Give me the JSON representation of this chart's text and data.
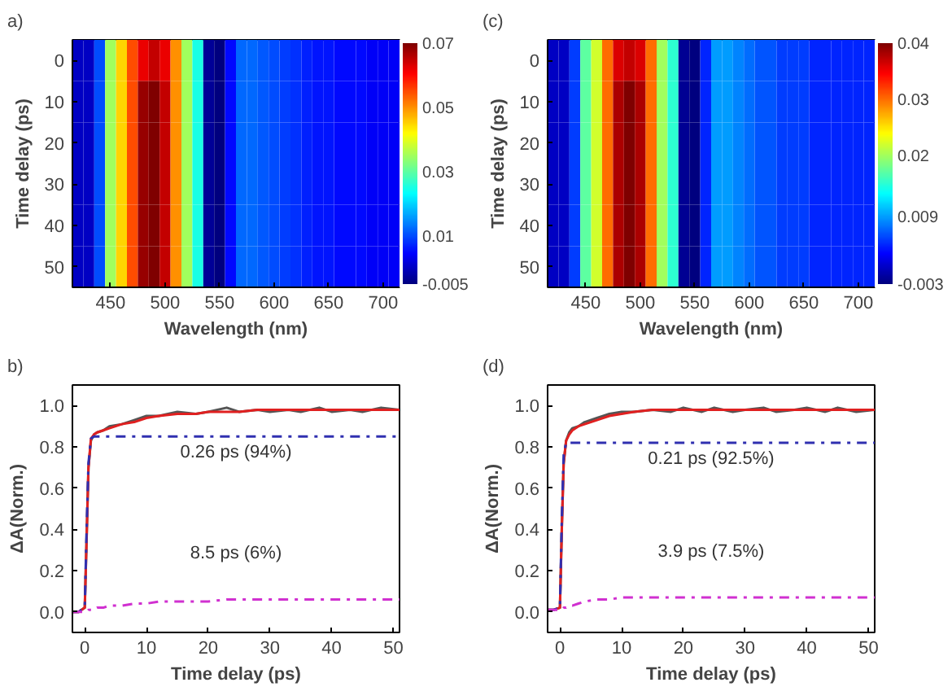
{
  "chart_data": [
    {
      "type": "heatmap",
      "title": "a)",
      "xlabel": "Wavelength (nm)",
      "ylabel": "Time delay (ps)",
      "categories": [
        null,
        null,
        null,
        "450",
        null,
        null,
        null,
        null,
        "500",
        null,
        null,
        null,
        null,
        "550",
        null,
        null,
        null,
        null,
        "600",
        null,
        null,
        null,
        null,
        "650",
        null,
        null,
        null,
        null,
        "700",
        null
      ],
      "y_categories": [
        "0",
        "10",
        "20",
        "30",
        "40",
        "50"
      ],
      "clim": [
        -0.005,
        0.07
      ],
      "cticks": [
        -0.005,
        0.01,
        0.03,
        0.05,
        0.07
      ],
      "cells": [
        [
          0.0,
          0.0,
          0.01,
          0.035,
          0.045,
          0.055,
          0.062,
          0.065,
          0.062,
          0.05,
          0.035,
          0.025,
          -0.003,
          -0.005,
          0.005,
          0.012,
          0.012,
          0.011,
          0.01,
          0.009,
          0.008,
          0.007,
          0.006,
          0.006,
          0.005,
          0.005,
          0.005,
          0.004,
          0.004,
          0.004
        ],
        [
          0.0,
          0.0,
          0.01,
          0.035,
          0.045,
          0.055,
          0.068,
          0.07,
          0.065,
          0.05,
          0.035,
          0.025,
          -0.003,
          -0.005,
          0.005,
          0.012,
          0.012,
          0.011,
          0.01,
          0.009,
          0.008,
          0.007,
          0.006,
          0.006,
          0.005,
          0.005,
          0.005,
          0.004,
          0.004,
          0.004
        ],
        [
          0.0,
          0.0,
          0.01,
          0.035,
          0.045,
          0.055,
          0.068,
          0.07,
          0.065,
          0.05,
          0.035,
          0.025,
          -0.003,
          -0.005,
          0.005,
          0.012,
          0.012,
          0.011,
          0.01,
          0.009,
          0.008,
          0.007,
          0.006,
          0.006,
          0.005,
          0.005,
          0.005,
          0.004,
          0.004,
          0.004
        ],
        [
          0.0,
          0.0,
          0.01,
          0.035,
          0.045,
          0.055,
          0.068,
          0.07,
          0.065,
          0.05,
          0.035,
          0.025,
          -0.003,
          -0.005,
          0.005,
          0.012,
          0.012,
          0.011,
          0.01,
          0.009,
          0.008,
          0.007,
          0.006,
          0.006,
          0.005,
          0.005,
          0.005,
          0.004,
          0.004,
          0.004
        ],
        [
          0.0,
          0.0,
          0.01,
          0.035,
          0.045,
          0.055,
          0.068,
          0.07,
          0.065,
          0.05,
          0.035,
          0.025,
          -0.003,
          -0.005,
          0.005,
          0.012,
          0.012,
          0.011,
          0.01,
          0.009,
          0.008,
          0.007,
          0.006,
          0.006,
          0.005,
          0.005,
          0.005,
          0.004,
          0.004,
          0.004
        ],
        [
          0.0,
          0.0,
          0.01,
          0.035,
          0.045,
          0.055,
          0.068,
          0.07,
          0.065,
          0.05,
          0.035,
          0.025,
          -0.003,
          -0.005,
          0.005,
          0.012,
          0.012,
          0.011,
          0.01,
          0.009,
          0.008,
          0.007,
          0.006,
          0.006,
          0.005,
          0.005,
          0.005,
          0.004,
          0.004,
          0.004
        ]
      ]
    },
    {
      "type": "heatmap",
      "title": "(c)",
      "xlabel": "Wavelength (nm)",
      "ylabel": "Time delay (ps)",
      "categories": [
        null,
        null,
        null,
        "450",
        null,
        null,
        null,
        null,
        "500",
        null,
        null,
        null,
        null,
        "550",
        null,
        null,
        null,
        null,
        "600",
        null,
        null,
        null,
        null,
        "650",
        null,
        null,
        null,
        null,
        "700",
        null
      ],
      "y_categories": [
        "0",
        "10",
        "20",
        "30",
        "40",
        "50"
      ],
      "clim": [
        -0.003,
        0.04
      ],
      "cticks": [
        -0.003,
        0.009,
        0.02,
        0.03,
        0.04
      ],
      "cells": [
        [
          0.0,
          0.0,
          0.005,
          0.017,
          0.022,
          0.03,
          0.036,
          0.037,
          0.036,
          0.03,
          0.02,
          0.015,
          -0.002,
          -0.003,
          0.004,
          0.009,
          0.009,
          0.008,
          0.007,
          0.006,
          0.006,
          0.005,
          0.005,
          0.005,
          0.004,
          0.004,
          0.004,
          0.004,
          0.004,
          0.004
        ],
        [
          0.0,
          0.0,
          0.005,
          0.017,
          0.022,
          0.03,
          0.038,
          0.04,
          0.038,
          0.03,
          0.02,
          0.015,
          -0.002,
          -0.003,
          0.004,
          0.009,
          0.009,
          0.008,
          0.007,
          0.006,
          0.006,
          0.005,
          0.005,
          0.005,
          0.004,
          0.004,
          0.004,
          0.004,
          0.004,
          0.004
        ],
        [
          0.0,
          0.0,
          0.005,
          0.017,
          0.022,
          0.03,
          0.038,
          0.04,
          0.038,
          0.03,
          0.02,
          0.015,
          -0.002,
          -0.003,
          0.004,
          0.009,
          0.009,
          0.008,
          0.007,
          0.006,
          0.006,
          0.005,
          0.005,
          0.005,
          0.004,
          0.004,
          0.004,
          0.004,
          0.004,
          0.004
        ],
        [
          0.0,
          0.0,
          0.005,
          0.017,
          0.022,
          0.03,
          0.038,
          0.04,
          0.038,
          0.03,
          0.02,
          0.015,
          -0.002,
          -0.003,
          0.004,
          0.009,
          0.009,
          0.008,
          0.007,
          0.006,
          0.006,
          0.005,
          0.005,
          0.005,
          0.004,
          0.004,
          0.004,
          0.004,
          0.004,
          0.004
        ],
        [
          0.0,
          0.0,
          0.005,
          0.017,
          0.022,
          0.03,
          0.038,
          0.04,
          0.038,
          0.03,
          0.02,
          0.015,
          -0.002,
          -0.003,
          0.004,
          0.009,
          0.009,
          0.008,
          0.007,
          0.006,
          0.006,
          0.005,
          0.005,
          0.005,
          0.004,
          0.004,
          0.004,
          0.004,
          0.004,
          0.004
        ],
        [
          0.0,
          0.0,
          0.005,
          0.017,
          0.022,
          0.03,
          0.038,
          0.04,
          0.038,
          0.03,
          0.02,
          0.015,
          -0.002,
          -0.003,
          0.004,
          0.009,
          0.009,
          0.008,
          0.007,
          0.006,
          0.006,
          0.005,
          0.005,
          0.005,
          0.004,
          0.004,
          0.004,
          0.004,
          0.004,
          0.004
        ]
      ]
    },
    {
      "type": "line",
      "title": "b)",
      "xlabel": "Time delay (ps)",
      "ylabel": "ΔA(Norm.)",
      "xlim": [
        -2,
        51
      ],
      "ylim": [
        -0.1,
        1.1
      ],
      "xticks": [
        0,
        10,
        20,
        30,
        40,
        50
      ],
      "yticks": [
        {
          "value": 0,
          "label": "0.0"
        },
        {
          "value": 0.2,
          "label": "0.2"
        },
        {
          "value": 0.4,
          "label": "0.4"
        },
        {
          "value": 0.6,
          "label": "0.6"
        },
        {
          "value": 0.8,
          "label": "0.8"
        },
        {
          "value": 1,
          "label": "1.0"
        }
      ],
      "grid": false,
      "marker": "none",
      "x": [
        -2,
        -1,
        0,
        0.3,
        0.6,
        1,
        1.5,
        2,
        3,
        4,
        6,
        8,
        10,
        12,
        15,
        18,
        20,
        23,
        25,
        28,
        30,
        33,
        35,
        38,
        40,
        43,
        45,
        48,
        51
      ],
      "series": [
        {
          "color": "#555555",
          "line_style": "solid",
          "values": [
            0,
            0,
            0.02,
            0.36,
            0.7,
            0.83,
            0.86,
            0.87,
            0.88,
            0.9,
            0.91,
            0.93,
            0.95,
            0.95,
            0.97,
            0.96,
            0.97,
            0.99,
            0.97,
            0.98,
            0.97,
            0.98,
            0.97,
            0.99,
            0.97,
            0.98,
            0.97,
            0.99,
            0.98
          ]
        },
        {
          "color": "#e02020",
          "line_style": "solid",
          "values": [
            0,
            0,
            0.02,
            0.35,
            0.7,
            0.84,
            0.86,
            0.87,
            0.88,
            0.89,
            0.91,
            0.92,
            0.94,
            0.95,
            0.96,
            0.96,
            0.97,
            0.97,
            0.97,
            0.98,
            0.98,
            0.98,
            0.98,
            0.98,
            0.98,
            0.98,
            0.98,
            0.98,
            0.98
          ]
        },
        {
          "color": "#3030b0",
          "line_style": "dashdot",
          "values": [
            0,
            0,
            0.02,
            0.4,
            0.72,
            0.84,
            0.85,
            0.85,
            0.85,
            0.85,
            0.85,
            0.85,
            0.85,
            0.85,
            0.85,
            0.85,
            0.85,
            0.85,
            0.85,
            0.85,
            0.85,
            0.85,
            0.85,
            0.85,
            0.85,
            0.85,
            0.85,
            0.85,
            0.85
          ]
        },
        {
          "color": "#d030d0",
          "line_style": "dashdot",
          "values": [
            0,
            0,
            0,
            0,
            0.01,
            0.01,
            0.01,
            0.02,
            0.02,
            0.03,
            0.03,
            0.04,
            0.04,
            0.05,
            0.05,
            0.05,
            0.05,
            0.06,
            0.06,
            0.06,
            0.06,
            0.06,
            0.06,
            0.06,
            0.06,
            0.06,
            0.06,
            0.06,
            0.06
          ]
        }
      ],
      "annotations": [
        "0.26 ps (94%)",
        "8.5 ps (6%)"
      ]
    },
    {
      "type": "line",
      "title": "(d)",
      "xlabel": "Time delay (ps)",
      "ylabel": "ΔA(Norm.)",
      "xlim": [
        -2,
        51
      ],
      "ylim": [
        -0.1,
        1.1
      ],
      "xticks": [
        0,
        10,
        20,
        30,
        40,
        50
      ],
      "yticks": [
        {
          "value": 0,
          "label": "0.0"
        },
        {
          "value": 0.2,
          "label": "0.2"
        },
        {
          "value": 0.4,
          "label": "0.4"
        },
        {
          "value": 0.6,
          "label": "0.6"
        },
        {
          "value": 0.8,
          "label": "0.8"
        },
        {
          "value": 1,
          "label": "1.0"
        }
      ],
      "grid": false,
      "marker": "none",
      "x": [
        -2,
        -1,
        0,
        0.3,
        0.6,
        1,
        1.5,
        2,
        3,
        4,
        6,
        8,
        10,
        12,
        15,
        18,
        20,
        23,
        25,
        28,
        30,
        33,
        35,
        38,
        40,
        43,
        45,
        48,
        51
      ],
      "series": [
        {
          "color": "#555555",
          "line_style": "solid",
          "values": [
            0.01,
            0.01,
            0.02,
            0.4,
            0.72,
            0.83,
            0.87,
            0.89,
            0.9,
            0.92,
            0.94,
            0.96,
            0.97,
            0.97,
            0.98,
            0.97,
            0.99,
            0.97,
            0.99,
            0.97,
            0.98,
            0.99,
            0.97,
            0.98,
            0.99,
            0.97,
            0.99,
            0.97,
            0.98
          ]
        },
        {
          "color": "#e02020",
          "line_style": "solid",
          "values": [
            0.01,
            0.01,
            0.02,
            0.4,
            0.72,
            0.83,
            0.86,
            0.88,
            0.9,
            0.91,
            0.93,
            0.95,
            0.96,
            0.97,
            0.98,
            0.98,
            0.98,
            0.98,
            0.98,
            0.98,
            0.98,
            0.98,
            0.98,
            0.98,
            0.98,
            0.98,
            0.98,
            0.98,
            0.98
          ]
        },
        {
          "color": "#3030b0",
          "line_style": "dashdot",
          "values": [
            0.01,
            0.01,
            0.02,
            0.45,
            0.76,
            0.82,
            0.82,
            0.82,
            0.82,
            0.82,
            0.82,
            0.82,
            0.82,
            0.82,
            0.82,
            0.82,
            0.82,
            0.82,
            0.82,
            0.82,
            0.82,
            0.82,
            0.82,
            0.82,
            0.82,
            0.82,
            0.82,
            0.82,
            0.82
          ]
        },
        {
          "color": "#d030d0",
          "line_style": "dashdot",
          "values": [
            0.01,
            0.01,
            0.01,
            0.01,
            0.02,
            0.02,
            0.03,
            0.03,
            0.04,
            0.05,
            0.06,
            0.06,
            0.07,
            0.07,
            0.07,
            0.07,
            0.07,
            0.07,
            0.07,
            0.07,
            0.07,
            0.07,
            0.07,
            0.07,
            0.07,
            0.07,
            0.07,
            0.07,
            0.07
          ]
        }
      ],
      "annotations": [
        "0.21 ps (92.5%)",
        "3.9 ps (7.5%)"
      ]
    }
  ]
}
